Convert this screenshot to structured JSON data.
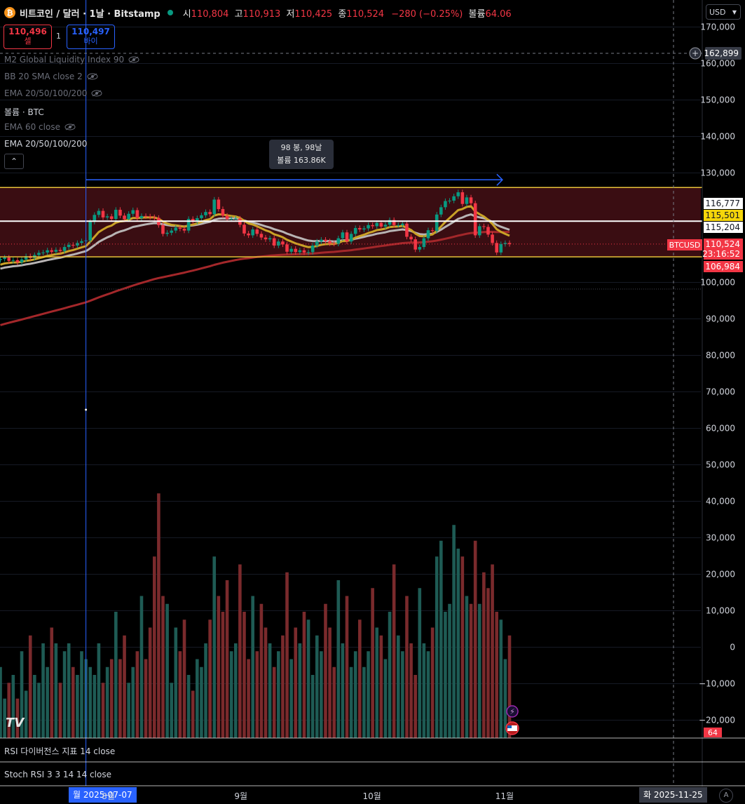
{
  "header": {
    "symbol_title": "비트코인 / 달러 · 1날 · Bitstamp",
    "ohlc": [
      {
        "k": "시",
        "v": "110,804"
      },
      {
        "k": "고",
        "v": "110,913"
      },
      {
        "k": "저",
        "v": "110,425"
      },
      {
        "k": "종",
        "v": "110,524"
      }
    ],
    "change": "−280 (−0.25%)",
    "volume_label": "볼륨",
    "volume_value": "64.06"
  },
  "trade": {
    "sell_price": "110,496",
    "sell_label": "셀",
    "spread": "1",
    "buy_price": "110,497",
    "buy_label": "바이"
  },
  "indicators": [
    {
      "label": "M2 Global Liquidity Index 90",
      "hidden": true
    },
    {
      "label": "BB 20 SMA close 2",
      "hidden": true
    },
    {
      "label": "EMA 20/50/100/200",
      "hidden": true
    },
    {
      "label": "볼륨 · BTC",
      "hidden": false
    },
    {
      "label": "EMA 60 close",
      "hidden": true
    },
    {
      "label": "EMA 20/50/100/200",
      "hidden": false
    }
  ],
  "collapse_glyph": "⌃",
  "currency": "USD",
  "measure_tooltip": {
    "line1": "98 봉, 98날",
    "line2": "볼륨 163.86K"
  },
  "price_axis": {
    "ticks": [
      {
        "label": "170,000",
        "value": 170000
      },
      {
        "label": "160,000",
        "value": 160000
      },
      {
        "label": "150,000",
        "value": 150000
      },
      {
        "label": "140,000",
        "value": 140000
      },
      {
        "label": "130,000",
        "value": 130000
      },
      {
        "label": "100,000",
        "value": 100000
      },
      {
        "label": "90,000",
        "value": 90000
      },
      {
        "label": "80,000",
        "value": 80000
      },
      {
        "label": "70,000",
        "value": 70000
      },
      {
        "label": "60,000",
        "value": 60000
      },
      {
        "label": "50,000",
        "value": 50000
      },
      {
        "label": "40,000",
        "value": 40000
      },
      {
        "label": "30,000",
        "value": 30000
      },
      {
        "label": "20,000",
        "value": 20000
      },
      {
        "label": "10,000",
        "value": 10000
      },
      {
        "label": "0",
        "value": 0
      },
      {
        "label": "−10,000",
        "value": -10000
      },
      {
        "label": "−20,000",
        "value": -20000
      }
    ],
    "crosshair_price": "162,899",
    "price_tags": [
      {
        "label": "116,777",
        "value": 116777,
        "bg": "#ffffff",
        "fg": "#131722"
      },
      {
        "label": "115,501",
        "value": 115501,
        "bg": "#f5d60a",
        "fg": "#131722"
      },
      {
        "label": "115,204",
        "value": 115204,
        "bg": "#ffffff",
        "fg": "#131722"
      },
      {
        "label": "110,524",
        "value": 110524,
        "bg": "#f23645",
        "fg": "#ffffff"
      },
      {
        "label": "23:16:52",
        "value": 108300,
        "bg": "#f23645",
        "fg": "#ffffff"
      },
      {
        "label": "106,984",
        "value": 106984,
        "bg": "#f23645",
        "fg": "#ffffff"
      }
    ],
    "symbol_tag": "BTCUSD",
    "volume_tag": "64"
  },
  "time_axis": {
    "crosshair_date": "월 2025-07-07",
    "end_date": "화 2025-11-25",
    "months": [
      {
        "label": "8월",
        "day": 25
      },
      {
        "label": "9월",
        "day": 56
      },
      {
        "label": "10월",
        "day": 86
      },
      {
        "label": "11월",
        "day": 117
      }
    ]
  },
  "sub_panes": [
    "RSI 다이버전스 지표 14 close",
    "Stoch RSI 3 3 14 14 close"
  ],
  "logo_text": "TV",
  "auto_button": "A",
  "colors": {
    "up": "#089981",
    "down": "#f23645",
    "range_fill": "#3a0d12",
    "ema_fast": "#c9a227",
    "ema_mid": "#b8b4b4",
    "ema_slow": "#a3272a",
    "measure": "#2962ff"
  },
  "chart_data": {
    "type": "candlestick",
    "x_start": "2025-06-17",
    "range_top": 126000,
    "range_bottom": 107000,
    "mid_line": 116777,
    "measure": {
      "from_day": 20,
      "to_day": 118,
      "price": 126000
    },
    "close": [
      106400,
      106800,
      105900,
      106100,
      105500,
      106300,
      107200,
      106700,
      107500,
      108100,
      108200,
      108800,
      108400,
      108900,
      108600,
      109700,
      110300,
      110100,
      110800,
      111300,
      111500,
      116600,
      118500,
      119600,
      117800,
      118100,
      117400,
      119900,
      118300,
      117300,
      118800,
      119800,
      117600,
      118200,
      118100,
      117900,
      117700,
      115700,
      113300,
      113600,
      114200,
      115000,
      114700,
      114200,
      117400,
      116700,
      117600,
      118400,
      119300,
      118700,
      122700,
      120100,
      118300,
      117400,
      117400,
      117500,
      115800,
      113400,
      112900,
      114500,
      113300,
      112300,
      111800,
      112100,
      110100,
      111200,
      110400,
      108400,
      109200,
      108300,
      108800,
      108200,
      108300,
      110100,
      111200,
      111700,
      111300,
      110700,
      110600,
      112100,
      113700,
      111200,
      113300,
      114900,
      114500,
      114800,
      115700,
      115400,
      116300,
      115300,
      115800,
      117100,
      115700,
      115700,
      116100,
      112500,
      111800,
      109000,
      109700,
      112100,
      114300,
      114100,
      118600,
      120600,
      122300,
      122400,
      123600,
      124700,
      121500,
      123300,
      121700,
      112900,
      115400,
      115200,
      113100,
      110800,
      108200,
      110500,
      110800,
      110500
    ],
    "volume": [
      4500,
      2500,
      3500,
      4000,
      2500,
      5500,
      3000,
      6500,
      4000,
      3500,
      6000,
      4500,
      7000,
      6000,
      3500,
      5500,
      6000,
      4500,
      4000,
      5500,
      5000,
      4500,
      4000,
      6000,
      3500,
      4500,
      5000,
      8000,
      5000,
      6500,
      3500,
      4500,
      5500,
      9000,
      5000,
      7000,
      11500,
      15500,
      9000,
      8500,
      3500,
      7000,
      5500,
      7500,
      4000,
      3000,
      5000,
      4500,
      6000,
      7500,
      11500,
      9000,
      8000,
      10000,
      5500,
      6000,
      11000,
      8000,
      5000,
      9000,
      5500,
      8500,
      7000,
      6000,
      4500,
      5500,
      6500,
      10500,
      5000,
      7000,
      6000,
      8000,
      7500,
      4000,
      6500,
      5500,
      8500,
      7000,
      4500,
      10000,
      6000,
      9000,
      4500,
      5500,
      7500,
      4500,
      5500,
      9500,
      7000,
      6500,
      5000,
      8000,
      11000,
      6500,
      5500,
      9000,
      6000,
      4000,
      9500,
      6000,
      5500,
      7000,
      11500,
      12500,
      8000,
      8500,
      13500,
      12000,
      11500,
      9000,
      8500,
      12500,
      8500,
      10500,
      9500,
      11000,
      8000,
      7500,
      5000,
      6500
    ]
  }
}
